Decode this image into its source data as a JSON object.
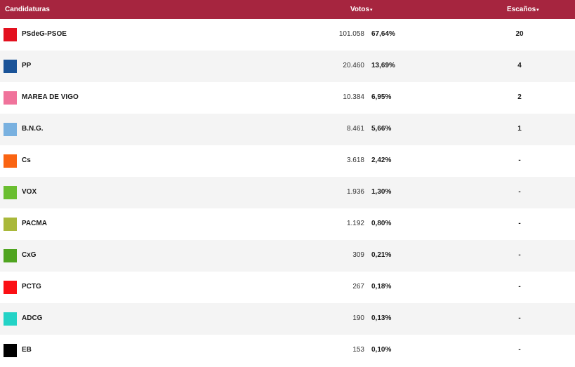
{
  "header": {
    "candidaturas": "Candidaturas",
    "votos": "Votos",
    "escanos": "Escaños",
    "sort_arrow": "▾"
  },
  "rows": [
    {
      "party": "PSdeG-PSOE",
      "color": "#e3101e",
      "votes": "101.058",
      "pct": "67,64%",
      "seats": "20"
    },
    {
      "party": "PP",
      "color": "#1a5398",
      "votes": "20.460",
      "pct": "13,69%",
      "seats": "4"
    },
    {
      "party": "MAREA DE VIGO",
      "color": "#f0739b",
      "votes": "10.384",
      "pct": "6,95%",
      "seats": "2"
    },
    {
      "party": "B.N.G.",
      "color": "#79b1e0",
      "votes": "8.461",
      "pct": "5,66%",
      "seats": "1"
    },
    {
      "party": "Cs",
      "color": "#fa6412",
      "votes": "3.618",
      "pct": "2,42%",
      "seats": "-"
    },
    {
      "party": "VOX",
      "color": "#6abe30",
      "votes": "1.936",
      "pct": "1,30%",
      "seats": "-"
    },
    {
      "party": "PACMA",
      "color": "#a9b83a",
      "votes": "1.192",
      "pct": "0,80%",
      "seats": "-"
    },
    {
      "party": "CxG",
      "color": "#4fa41f",
      "votes": "309",
      "pct": "0,21%",
      "seats": "-"
    },
    {
      "party": "PCTG",
      "color": "#fb0f14",
      "votes": "267",
      "pct": "0,18%",
      "seats": "-"
    },
    {
      "party": "ADCG",
      "color": "#23d3c6",
      "votes": "190",
      "pct": "0,13%",
      "seats": "-"
    },
    {
      "party": "EB",
      "color": "#000000",
      "votes": "153",
      "pct": "0,10%",
      "seats": "-"
    }
  ]
}
